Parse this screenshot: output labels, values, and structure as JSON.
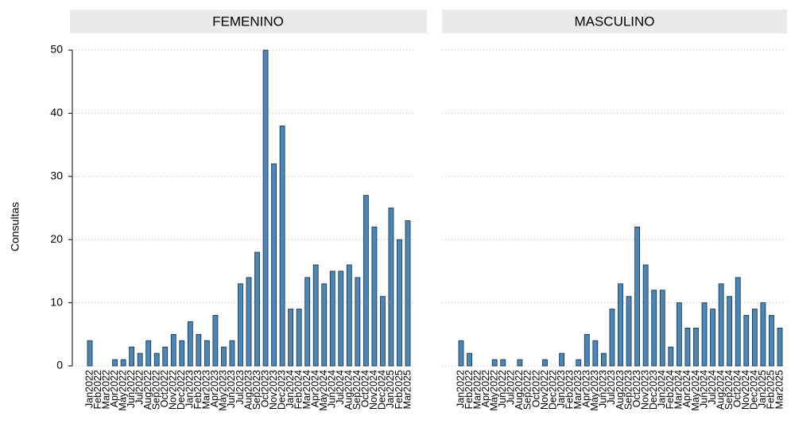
{
  "chart_data": [
    {
      "type": "bar",
      "title": "FEMENINO",
      "y_label": "Consultas",
      "color": "#4a87b9",
      "grid": true,
      "categories": [
        "Jan2022",
        "Feb2022",
        "Mar2022",
        "Apr2022",
        "May2022",
        "Jun2022",
        "Jul2022",
        "Aug2022",
        "Sep2022",
        "Oct2022",
        "Nov2022",
        "Dec2022",
        "Jan2023",
        "Feb2023",
        "Mar2023",
        "Apr2023",
        "May2023",
        "Jun2023",
        "Jul2023",
        "Aug2023",
        "Sep2023",
        "Oct2023",
        "Nov2023",
        "Dec2023",
        "Jan2024",
        "Feb2024",
        "Mar2024",
        "Apr2024",
        "May2024",
        "Jun2024",
        "Jul2024",
        "Aug2024",
        "Sep2024",
        "Oct2024",
        "Nov2024",
        "Dec2024",
        "Jan2025",
        "Feb2025",
        "Mar2025"
      ],
      "values": [
        4,
        0,
        0,
        1,
        1,
        3,
        2,
        4,
        2,
        3,
        5,
        4,
        7,
        5,
        4,
        8,
        3,
        4,
        13,
        14,
        18,
        50,
        32,
        38,
        9,
        9,
        14,
        16,
        13,
        15,
        15,
        16,
        14,
        27,
        22,
        11,
        25,
        20,
        23
      ],
      "ylim": [
        0,
        50
      ],
      "yticks": [
        0,
        10,
        20,
        30,
        40,
        50
      ]
    },
    {
      "type": "bar",
      "title": "MASCULINO",
      "color": "#4a87b9",
      "grid": true,
      "categories": [
        "Jan2022",
        "Feb2022",
        "Mar2022",
        "Apr2022",
        "May2022",
        "Jun2022",
        "Jul2022",
        "Aug2022",
        "Sep2022",
        "Oct2022",
        "Nov2022",
        "Dec2022",
        "Jan2023",
        "Feb2023",
        "Mar2023",
        "Apr2023",
        "May2023",
        "Jun2023",
        "Jul2023",
        "Aug2023",
        "Sep2023",
        "Oct2023",
        "Nov2023",
        "Dec2023",
        "Jan2024",
        "Feb2024",
        "Mar2024",
        "Apr2024",
        "May2024",
        "Jun2024",
        "Jul2024",
        "Aug2024",
        "Sep2024",
        "Oct2024",
        "Nov2024",
        "Dec2024",
        "Jan2025",
        "Feb2025",
        "Mar2025"
      ],
      "values": [
        4,
        2,
        0,
        0,
        1,
        1,
        0,
        1,
        0,
        0,
        1,
        0,
        2,
        0,
        1,
        5,
        4,
        2,
        9,
        13,
        11,
        22,
        16,
        12,
        12,
        3,
        10,
        6,
        6,
        10,
        9,
        13,
        11,
        14,
        8,
        9,
        10,
        8,
        6
      ],
      "ylim": [
        0,
        50
      ],
      "yticks": [
        0,
        10,
        20,
        30,
        40,
        50
      ]
    }
  ]
}
